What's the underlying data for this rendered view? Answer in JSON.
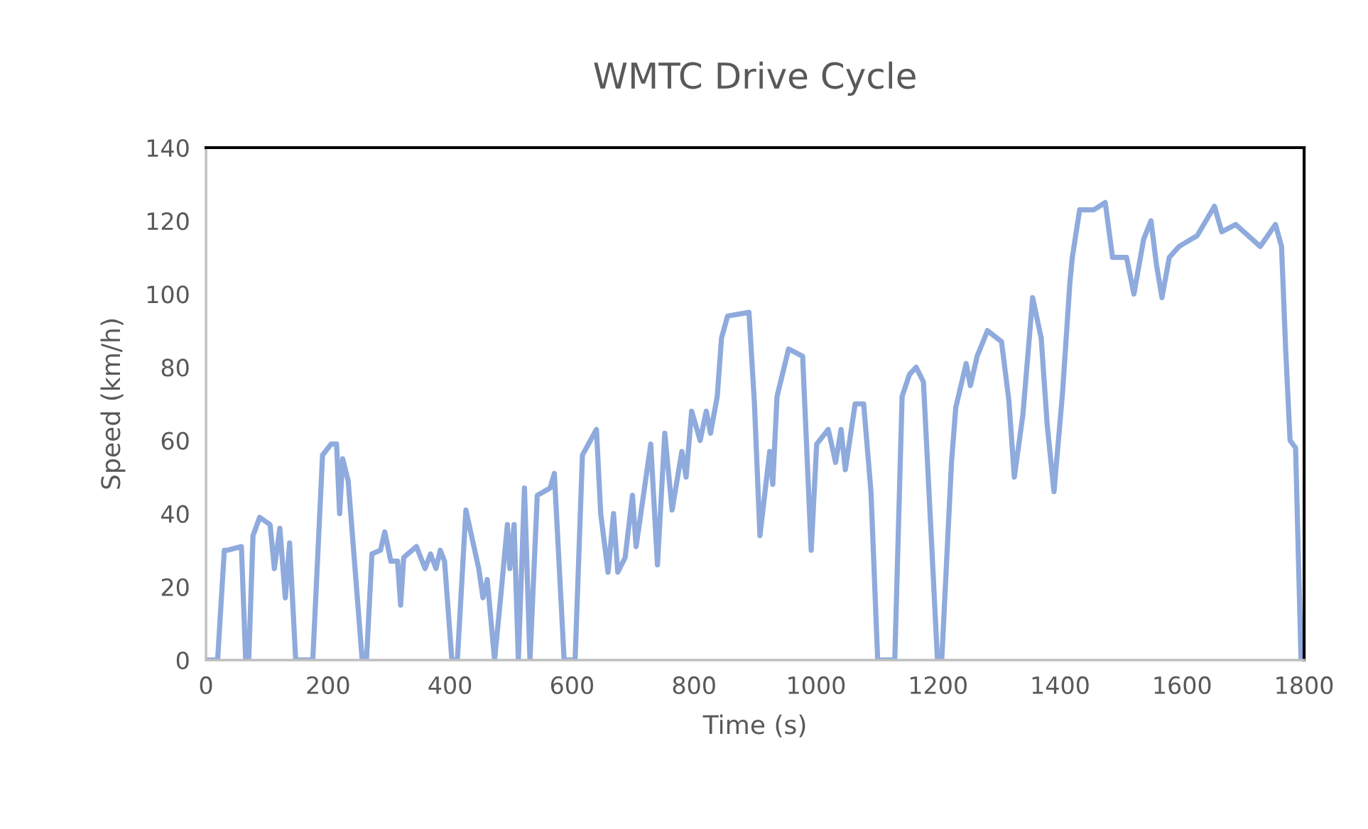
{
  "chart_data": {
    "type": "line",
    "title": "WMTC Drive Cycle",
    "xlabel": "Time (s)",
    "ylabel": "Speed (km/h)",
    "xlim": [
      0,
      1800
    ],
    "xticks": [
      0,
      200,
      400,
      600,
      800,
      1000,
      1200,
      1400,
      1600,
      1800
    ],
    "ylim": [
      0,
      140
    ],
    "yticks": [
      0,
      20,
      40,
      60,
      80,
      100,
      120,
      140
    ],
    "grid": false,
    "legend": false,
    "marker": "none",
    "line_style": "solid",
    "series": [
      {
        "color": "#8faadc",
        "x": [
          0,
          19,
          30,
          35,
          58,
          65,
          70,
          77,
          88,
          105,
          112,
          121,
          130,
          137,
          147,
          175,
          191,
          205,
          214,
          219,
          224,
          233,
          256,
          263,
          272,
          286,
          293,
          303,
          314,
          319,
          324,
          345,
          359,
          368,
          377,
          384,
          391,
          403,
          412,
          426,
          447,
          454,
          461,
          473,
          484,
          494,
          498,
          505,
          512,
          522,
          531,
          543,
          564,
          571,
          587,
          605,
          617,
          640,
          647,
          659,
          668,
          675,
          687,
          699,
          705,
          717,
          729,
          740,
          752,
          764,
          780,
          787,
          796,
          810,
          820,
          827,
          838,
          845,
          855,
          890,
          899,
          908,
          924,
          929,
          936,
          955,
          978,
          992,
          1001,
          1020,
          1032,
          1041,
          1048,
          1064,
          1078,
          1090,
          1101,
          1129,
          1141,
          1153,
          1164,
          1176,
          1199,
          1206,
          1222,
          1229,
          1246,
          1253,
          1264,
          1281,
          1304,
          1316,
          1325,
          1339,
          1355,
          1369,
          1379,
          1390,
          1404,
          1416,
          1420,
          1432,
          1455,
          1474,
          1486,
          1509,
          1521,
          1537,
          1549,
          1558,
          1567,
          1579,
          1595,
          1625,
          1653,
          1665,
          1688,
          1728,
          1753,
          1763,
          1770,
          1777,
          1786,
          1795
        ],
        "values": [
          0,
          0,
          30,
          30,
          31,
          0,
          0,
          34,
          39,
          37,
          25,
          36,
          17,
          32,
          0,
          0,
          56,
          59,
          59,
          40,
          55,
          49,
          0,
          0,
          29,
          30,
          35,
          27,
          27,
          15,
          28,
          31,
          25,
          29,
          25,
          30,
          27,
          0,
          0,
          41,
          25,
          17,
          22,
          0,
          19,
          37,
          25,
          37,
          0,
          47,
          0,
          45,
          47,
          51,
          0,
          0,
          56,
          63,
          40,
          24,
          40,
          24,
          28,
          45,
          31,
          45,
          59,
          26,
          62,
          41,
          57,
          50,
          68,
          60,
          68,
          62,
          72,
          88,
          94,
          95,
          70,
          34,
          57,
          48,
          72,
          85,
          83,
          30,
          59,
          63,
          54,
          63,
          52,
          70,
          70,
          46,
          0,
          0,
          72,
          78,
          80,
          76,
          0,
          0,
          54,
          69,
          81,
          75,
          83,
          90,
          87,
          71,
          50,
          67,
          99,
          88,
          64,
          46,
          73,
          103,
          110,
          123,
          123,
          125,
          110,
          110,
          100,
          115,
          120,
          108,
          99,
          110,
          113,
          116,
          124,
          117,
          119,
          113,
          119,
          113,
          84,
          60,
          58,
          0
        ]
      }
    ]
  }
}
